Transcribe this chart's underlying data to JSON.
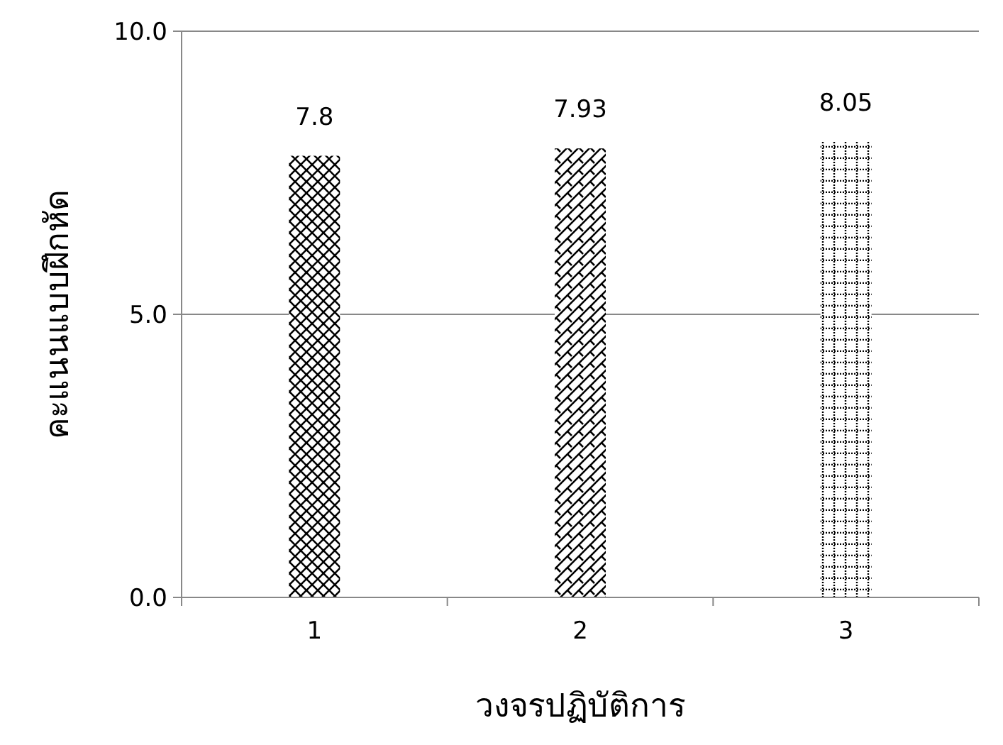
{
  "chart_data": {
    "type": "bar",
    "xlabel": "วงจรปฏิบัติการ",
    "ylabel": "คะแนนแบบฝึกหัด",
    "categories": [
      "1",
      "2",
      "3"
    ],
    "values": [
      7.8,
      7.93,
      8.05
    ],
    "color": "#000000",
    "data_labels": true,
    "ylim": [
      0,
      10
    ],
    "yticks": [
      {
        "value": 0,
        "label": "0.0"
      },
      {
        "value": 5,
        "label": "5.0"
      },
      {
        "value": 10,
        "label": "10.0"
      }
    ],
    "grid": "y"
  }
}
